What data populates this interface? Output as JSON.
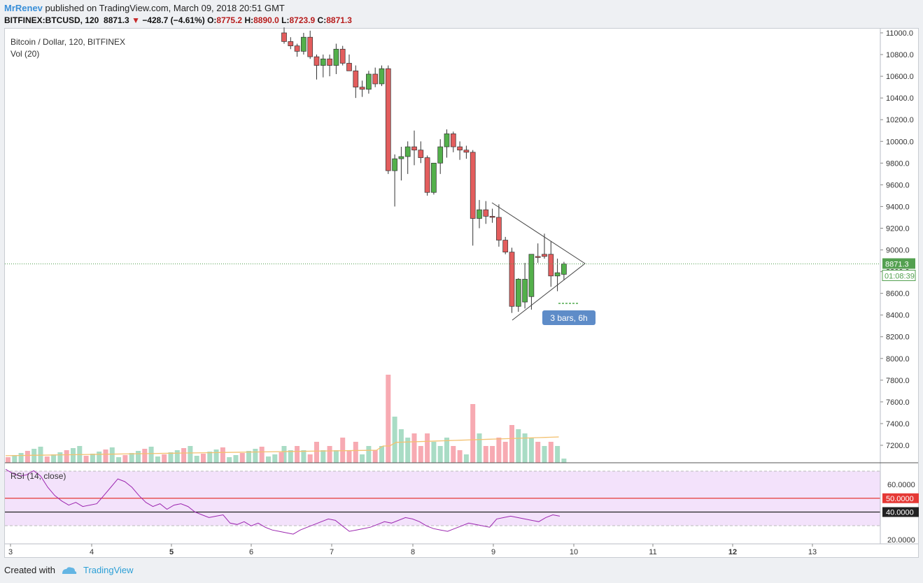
{
  "header": {
    "author": "MrRenev",
    "published_text": "published on TradingView.com, March 09, 2018 20:51 GMT"
  },
  "symbol_bar": {
    "symbol": "BITFINEX:BTCUSD, 120",
    "last": "8871.3",
    "arrow": "▼",
    "change": "−428.7 (−4.61%)",
    "open_label": "O:",
    "open": "8775.2",
    "high_label": "H:",
    "high": "8890.0",
    "low_label": "L:",
    "low": "8723.9",
    "close_label": "C:",
    "close": "8871.3"
  },
  "legend": {
    "title": "Bitcoin / Dollar, 120, BITFINEX",
    "volume": "Vol (20)",
    "rsi": "RSI (14, close)"
  },
  "price_axis": {
    "ticks": [
      "11000.0",
      "10800.0",
      "10600.0",
      "10400.0",
      "10200.0",
      "10000.0",
      "9800.0",
      "9600.0",
      "9400.0",
      "9200.0",
      "9000.0",
      "8800.0",
      "8600.0",
      "8400.0",
      "8200.0",
      "8000.0",
      "7800.0",
      "7600.0",
      "7400.0",
      "7200.0"
    ],
    "last_price_label": "8871.3",
    "countdown_label": "01:08:39"
  },
  "rsi_axis": {
    "ticks": [
      "60.0000",
      "20.0000"
    ],
    "upper_label": "50.0000",
    "lower_label": "40.0000"
  },
  "time_axis": {
    "ticks": [
      "3",
      "4",
      "5",
      "6",
      "7",
      "8",
      "9",
      "10",
      "11",
      "12",
      "13"
    ],
    "bold_ticks": [
      "5",
      "12"
    ]
  },
  "annotation": {
    "bars_label": "3 bars, 6h"
  },
  "footer": {
    "created_with": "Created with",
    "brand": "TradingView"
  },
  "colors": {
    "up": "#53b04b",
    "down": "#e35d5d",
    "vol_up": "#a9dcc5",
    "vol_down": "#f7aab2",
    "vol_ma": "#f3c170",
    "rsi_line": "#9c27b0",
    "rsi_band": "#f3e2fb",
    "last_price": "#53a050",
    "badge": "#5e8cc8"
  },
  "chart_data": {
    "type": "candlestick",
    "title": "Bitcoin / Dollar, 120, BITFINEX",
    "ylim": [
      7050,
      11000
    ],
    "candles": [
      {
        "o": 11000,
        "h": 11050,
        "l": 10900,
        "c": 10920
      },
      {
        "o": 10920,
        "h": 10960,
        "l": 10850,
        "c": 10880
      },
      {
        "o": 10880,
        "h": 10900,
        "l": 10780,
        "c": 10830
      },
      {
        "o": 10830,
        "h": 11000,
        "l": 10800,
        "c": 10960
      },
      {
        "o": 10960,
        "h": 11020,
        "l": 10760,
        "c": 10780
      },
      {
        "o": 10780,
        "h": 10800,
        "l": 10570,
        "c": 10700
      },
      {
        "o": 10700,
        "h": 10800,
        "l": 10590,
        "c": 10760
      },
      {
        "o": 10760,
        "h": 10800,
        "l": 10600,
        "c": 10700
      },
      {
        "o": 10700,
        "h": 10900,
        "l": 10620,
        "c": 10850
      },
      {
        "o": 10850,
        "h": 10880,
        "l": 10700,
        "c": 10720
      },
      {
        "o": 10720,
        "h": 10800,
        "l": 10650,
        "c": 10650
      },
      {
        "o": 10650,
        "h": 10700,
        "l": 10400,
        "c": 10500
      },
      {
        "o": 10500,
        "h": 10560,
        "l": 10410,
        "c": 10480
      },
      {
        "o": 10480,
        "h": 10650,
        "l": 10440,
        "c": 10620
      },
      {
        "o": 10620,
        "h": 10680,
        "l": 10500,
        "c": 10530
      },
      {
        "o": 10530,
        "h": 10700,
        "l": 10510,
        "c": 10670
      },
      {
        "o": 10670,
        "h": 10700,
        "l": 9700,
        "c": 9730
      },
      {
        "o": 9730,
        "h": 9880,
        "l": 9400,
        "c": 9840
      },
      {
        "o": 9840,
        "h": 9950,
        "l": 9640,
        "c": 9860
      },
      {
        "o": 9860,
        "h": 10000,
        "l": 9700,
        "c": 9950
      },
      {
        "o": 9950,
        "h": 10100,
        "l": 9780,
        "c": 9920
      },
      {
        "o": 9920,
        "h": 10000,
        "l": 9800,
        "c": 9850
      },
      {
        "o": 9850,
        "h": 9870,
        "l": 9500,
        "c": 9530
      },
      {
        "o": 9530,
        "h": 9800,
        "l": 9510,
        "c": 9800
      },
      {
        "o": 9800,
        "h": 10020,
        "l": 9700,
        "c": 9950
      },
      {
        "o": 9950,
        "h": 10110,
        "l": 9850,
        "c": 10070
      },
      {
        "o": 10070,
        "h": 10090,
        "l": 9900,
        "c": 9950
      },
      {
        "o": 9950,
        "h": 10000,
        "l": 9830,
        "c": 9920
      },
      {
        "o": 9920,
        "h": 9960,
        "l": 9840,
        "c": 9900
      },
      {
        "o": 9900,
        "h": 9920,
        "l": 9040,
        "c": 9290
      },
      {
        "o": 9290,
        "h": 9460,
        "l": 9200,
        "c": 9370
      },
      {
        "o": 9370,
        "h": 9450,
        "l": 9240,
        "c": 9310
      },
      {
        "o": 9310,
        "h": 9380,
        "l": 9250,
        "c": 9300
      },
      {
        "o": 9300,
        "h": 9420,
        "l": 9030,
        "c": 9090
      },
      {
        "o": 9090,
        "h": 9120,
        "l": 8960,
        "c": 8980
      },
      {
        "o": 8980,
        "h": 9020,
        "l": 8420,
        "c": 8480
      },
      {
        "o": 8480,
        "h": 8740,
        "l": 8430,
        "c": 8730
      },
      {
        "o": 8520,
        "h": 8880,
        "l": 8460,
        "c": 8730
      },
      {
        "o": 8570,
        "h": 8960,
        "l": 8450,
        "c": 8960
      },
      {
        "o": 8940,
        "h": 9060,
        "l": 8880,
        "c": 8930
      },
      {
        "o": 8960,
        "h": 9150,
        "l": 8920,
        "c": 8940
      },
      {
        "o": 8960,
        "h": 9080,
        "l": 8660,
        "c": 8760
      },
      {
        "o": 8760,
        "h": 8920,
        "l": 8620,
        "c": 8790
      },
      {
        "o": 8775,
        "h": 8890,
        "l": 8724,
        "c": 8871
      }
    ],
    "volume_scale": [
      0,
      1
    ],
    "volumes": [
      {
        "v": 0.04,
        "up": true
      },
      {
        "v": 0.03,
        "up": true
      },
      {
        "v": 0.04,
        "up": false
      },
      {
        "v": 0.03,
        "up": true
      },
      {
        "v": 0.02,
        "up": false
      },
      {
        "v": 0.05,
        "up": false
      },
      {
        "v": 0.03,
        "up": true
      },
      {
        "v": 0.04,
        "up": false
      },
      {
        "v": 0.03,
        "up": true
      },
      {
        "v": 0.06,
        "up": false
      },
      {
        "v": 0.03,
        "up": false
      },
      {
        "v": 0.05,
        "up": false
      },
      {
        "v": 0.02,
        "up": true
      },
      {
        "v": 0.04,
        "up": true
      },
      {
        "v": 0.03,
        "up": false
      },
      {
        "v": 0.04,
        "up": true
      },
      {
        "v": 0.21,
        "up": false
      },
      {
        "v": 0.11,
        "up": true
      },
      {
        "v": 0.08,
        "up": true
      },
      {
        "v": 0.06,
        "up": true
      },
      {
        "v": 0.07,
        "up": false
      },
      {
        "v": 0.04,
        "up": false
      },
      {
        "v": 0.07,
        "up": false
      },
      {
        "v": 0.05,
        "up": true
      },
      {
        "v": 0.04,
        "up": true
      },
      {
        "v": 0.06,
        "up": true
      },
      {
        "v": 0.04,
        "up": false
      },
      {
        "v": 0.03,
        "up": false
      },
      {
        "v": 0.02,
        "up": true
      },
      {
        "v": 0.14,
        "up": false
      },
      {
        "v": 0.07,
        "up": true
      },
      {
        "v": 0.04,
        "up": false
      },
      {
        "v": 0.04,
        "up": false
      },
      {
        "v": 0.06,
        "up": false
      },
      {
        "v": 0.05,
        "up": false
      },
      {
        "v": 0.09,
        "up": false
      },
      {
        "v": 0.08,
        "up": true
      },
      {
        "v": 0.07,
        "up": true
      },
      {
        "v": 0.06,
        "up": true
      },
      {
        "v": 0.05,
        "up": false
      },
      {
        "v": 0.04,
        "up": true
      },
      {
        "v": 0.05,
        "up": false
      },
      {
        "v": 0.04,
        "up": true
      },
      {
        "v": 0.01,
        "up": true
      }
    ],
    "rsi_ylim": [
      20,
      70
    ],
    "rsi": [
      71,
      68,
      66,
      67,
      70,
      66,
      58,
      52,
      48,
      45,
      47,
      44,
      45,
      46,
      52,
      58,
      64,
      62,
      58,
      52,
      47,
      44,
      46,
      42,
      45,
      46,
      44,
      40,
      38,
      36,
      37,
      38,
      32,
      31,
      33,
      30,
      32,
      29,
      27,
      26,
      25,
      24,
      27,
      29,
      31,
      33,
      35,
      34,
      30,
      26,
      27,
      28,
      29,
      31,
      33,
      32,
      34,
      36,
      35,
      33,
      30,
      28,
      27,
      26,
      28,
      30,
      32,
      31,
      30,
      29,
      35,
      36,
      37,
      36,
      35,
      34,
      33,
      36,
      38,
      37
    ]
  }
}
